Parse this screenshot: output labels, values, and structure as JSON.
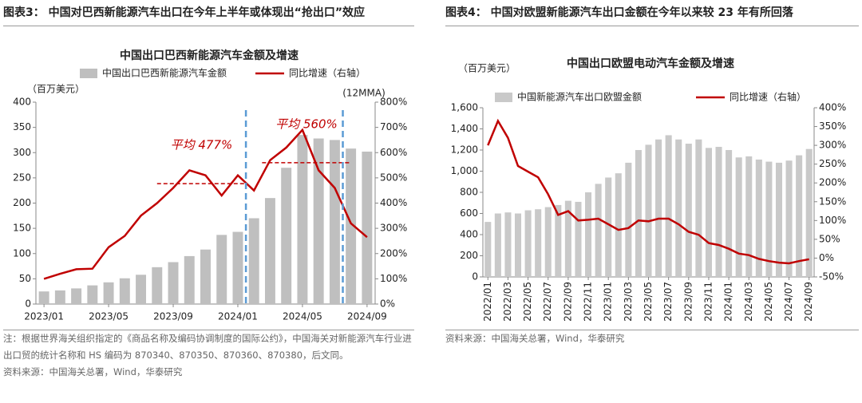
{
  "panels": [
    {
      "caption": "图表3： 中国对巴西新能源汽车出口在今年上半年或体现出“抢出口”效应",
      "notes": [
        "注：根据世界海关组织指定的《商品名称及编码协调制度的国际公约》，中国海关对新能源汽车行业进出口贸的统计名称和 HS 编码为 870340、870350、870360、870380，后文同。",
        "资料来源：中国海关总署，Wind，华泰研究"
      ]
    },
    {
      "caption": "图表4： 中国对欧盟新能源汽车出口金额在今年以来较 23 年有所回落",
      "notes": [
        "资料来源：中国海关总署，Wind，华泰研究"
      ]
    }
  ],
  "chart_data": [
    {
      "type": "bar_line",
      "title": "中国出口巴西新能源汽车金额及增速",
      "y_label": "（百万美元）",
      "y2_label": "(12MMA)",
      "categories": [
        "2023/01",
        null,
        null,
        null,
        "2023/05",
        null,
        null,
        null,
        "2023/09",
        null,
        null,
        null,
        "2024/01",
        null,
        null,
        null,
        "2024/05",
        null,
        null,
        null,
        "2024/09"
      ],
      "series": [
        {
          "name": "中国出口巴西新能源汽车金额",
          "type": "bar",
          "color": "#bfbfbf",
          "values": [
            25,
            27,
            31,
            37,
            43,
            51,
            58,
            73,
            83,
            95,
            108,
            137,
            143,
            170,
            210,
            270,
            335,
            328,
            325,
            308,
            302
          ]
        },
        {
          "name": "同比增速（右轴）",
          "type": "line",
          "axis": "y2",
          "color": "#c00000",
          "values": [
            100,
            120,
            138,
            140,
            225,
            270,
            350,
            400,
            460,
            530,
            510,
            430,
            510,
            450,
            570,
            620,
            690,
            530,
            460,
            320,
            265
          ]
        }
      ],
      "ylim": [
        0,
        400
      ],
      "yticks": [
        0,
        50,
        100,
        150,
        200,
        250,
        300,
        350,
        400
      ],
      "y2lim": [
        0,
        800
      ],
      "y2ticks": [
        {
          "value": 0,
          "label": "0%"
        },
        {
          "value": 100,
          "label": "100%"
        },
        {
          "value": 200,
          "label": "200%"
        },
        {
          "value": 300,
          "label": "300%"
        },
        {
          "value": 400,
          "label": "400%"
        },
        {
          "value": 500,
          "label": "500%"
        },
        {
          "value": 600,
          "label": "600%"
        },
        {
          "value": 700,
          "label": "700%"
        },
        {
          "value": 800,
          "label": "800%"
        }
      ],
      "annotations": [
        {
          "label": "平均 477%",
          "value": 477
        },
        {
          "label": "平均 560%",
          "value": 560
        }
      ]
    },
    {
      "type": "bar_line",
      "title": "中国出口欧盟电动汽车金额及增速",
      "y_label": "（百万美元）",
      "categories": [
        "2022/01",
        null,
        "2022/03",
        null,
        "2022/05",
        null,
        "2022/07",
        null,
        "2022/09",
        null,
        "2022/11",
        null,
        "2023/01",
        null,
        "2023/03",
        null,
        "2023/05",
        null,
        "2023/07",
        null,
        "2023/09",
        null,
        "2023/11",
        null,
        "2024/01",
        null,
        "2024/03",
        null,
        "2024/05",
        null,
        "2024/07",
        null,
        "2024/09"
      ],
      "series": [
        {
          "name": "中国新能源汽车出口欧盟金额",
          "type": "bar",
          "color": "#c9c9c9",
          "values": [
            520,
            600,
            610,
            600,
            630,
            640,
            660,
            680,
            720,
            710,
            800,
            880,
            940,
            980,
            1080,
            1200,
            1250,
            1300,
            1340,
            1300,
            1260,
            1300,
            1220,
            1230,
            1200,
            1130,
            1140,
            1110,
            1090,
            1080,
            1100,
            1150,
            1210
          ]
        },
        {
          "name": "同比增速（右轴）",
          "type": "line",
          "axis": "y2",
          "color": "#c00000",
          "values": [
            300,
            365,
            320,
            245,
            230,
            215,
            170,
            115,
            125,
            100,
            102,
            105,
            90,
            75,
            80,
            100,
            98,
            105,
            105,
            90,
            70,
            62,
            40,
            35,
            25,
            12,
            8,
            -2,
            -8,
            -12,
            -14,
            -8,
            -3
          ]
        }
      ],
      "ylim": [
        0,
        1600
      ],
      "yticks": [
        0,
        200,
        400,
        600,
        800,
        {
          "value": 1000,
          "label": "1,000"
        },
        {
          "value": 1200,
          "label": "1,200"
        },
        {
          "value": 1400,
          "label": "1,400"
        },
        {
          "value": 1600,
          "label": "1,600"
        }
      ],
      "y2lim": [
        -50,
        400
      ],
      "y2ticks": [
        {
          "value": -50,
          "label": "-50%"
        },
        {
          "value": 0,
          "label": "0%"
        },
        {
          "value": 50,
          "label": "50%"
        },
        {
          "value": 100,
          "label": "100%"
        },
        {
          "value": 150,
          "label": "150%"
        },
        {
          "value": 200,
          "label": "200%"
        },
        {
          "value": 250,
          "label": "250%"
        },
        {
          "value": 300,
          "label": "300%"
        },
        {
          "value": 350,
          "label": "350%"
        },
        {
          "value": 400,
          "label": "400%"
        }
      ]
    }
  ]
}
